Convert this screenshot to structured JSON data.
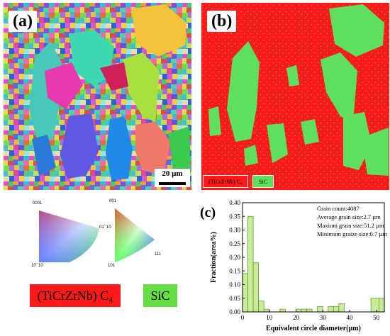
{
  "panel_a": {
    "label": "(a)",
    "scale_bar": "20 µm"
  },
  "panel_b": {
    "label": "(b)",
    "legend": [
      {
        "text": "(TiCrZrNb) C₄",
        "color": "#ff1a1a"
      },
      {
        "text": "SiC",
        "color": "#5ee05e"
      }
    ]
  },
  "ipf": {
    "left": {
      "top": "0001",
      "right": "01¯10",
      "bottom": "10¯10"
    },
    "right": {
      "top": "001",
      "right": "111",
      "bottom": "101"
    }
  },
  "big_legend": [
    {
      "text": "(TiCrZrNb) C₄",
      "color": "#ff1a1a"
    },
    {
      "text": "SiC",
      "color": "#66dd44"
    }
  ],
  "panel_c": {
    "label": "(c)",
    "stats": [
      "Grain count:4087",
      "Average grain size:2.7 µm",
      "Maxium grain size:51.2 µm",
      "Minimum graize size:0.7 µm"
    ]
  },
  "chart_data": {
    "type": "bar",
    "xlabel": "Equivalent circle diameter(µm)",
    "ylabel": "Fraction(area%)",
    "xlim": [
      0,
      53
    ],
    "ylim": [
      0,
      0.4
    ],
    "xticks": [
      0,
      10,
      20,
      30,
      40,
      50
    ],
    "yticks": [
      "0.00",
      "0.05",
      "0.10",
      "0.15",
      "0.20",
      "0.25",
      "0.30",
      "0.35",
      "0.40"
    ],
    "bar_color": "#c8ec9c",
    "bar_edge": "#6a9a2a",
    "bins": [
      {
        "x0": 0,
        "x1": 2,
        "y": 0.14
      },
      {
        "x0": 2,
        "x1": 4,
        "y": 0.35
      },
      {
        "x0": 4,
        "x1": 6,
        "y": 0.18
      },
      {
        "x0": 6,
        "x1": 8,
        "y": 0.04
      },
      {
        "x0": 8,
        "x1": 10,
        "y": 0.01
      },
      {
        "x0": 14,
        "x1": 16,
        "y": 0.01
      },
      {
        "x0": 20,
        "x1": 22,
        "y": 0.01
      },
      {
        "x0": 22,
        "x1": 24,
        "y": 0.01
      },
      {
        "x0": 24,
        "x1": 26,
        "y": 0.01
      },
      {
        "x0": 28,
        "x1": 30,
        "y": 0.02
      },
      {
        "x0": 32,
        "x1": 34,
        "y": 0.02
      },
      {
        "x0": 34,
        "x1": 36,
        "y": 0.02
      },
      {
        "x0": 36,
        "x1": 38,
        "y": 0.03
      },
      {
        "x0": 48,
        "x1": 51,
        "y": 0.05
      },
      {
        "x0": 51,
        "x1": 53,
        "y": 0.05
      }
    ]
  }
}
